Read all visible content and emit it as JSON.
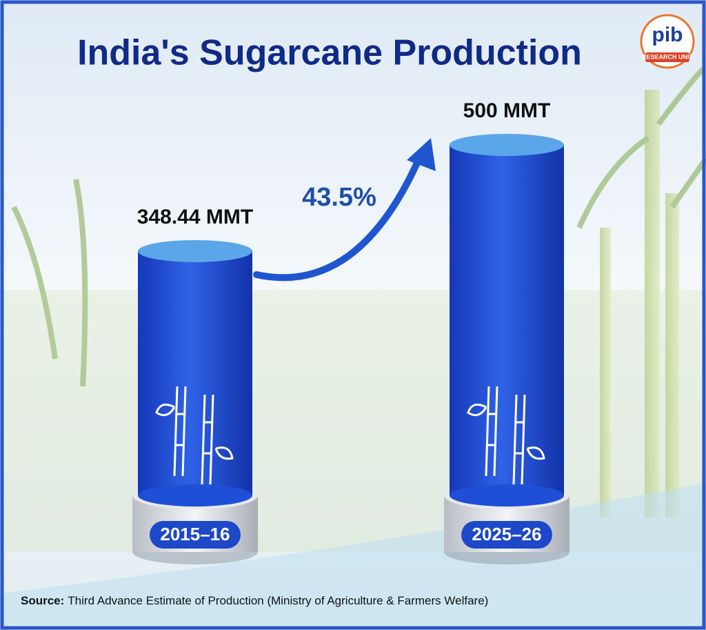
{
  "chart_data": {
    "type": "bar",
    "title": "India's Sugarcane Production",
    "categories": [
      "2015–16",
      "2025–26"
    ],
    "values": [
      348.44,
      500
    ],
    "value_labels": [
      "348.44 MMT",
      "500 MMT"
    ],
    "color": "#1f4fd6",
    "annotation": "43.5%"
  },
  "logo": {
    "text": "pib",
    "subtitle": "RESEARCH UNIT"
  },
  "source": {
    "label": "Source:",
    "text": "Third Advance Estimate of Production (Ministry of Agriculture & Farmers Welfare)"
  }
}
